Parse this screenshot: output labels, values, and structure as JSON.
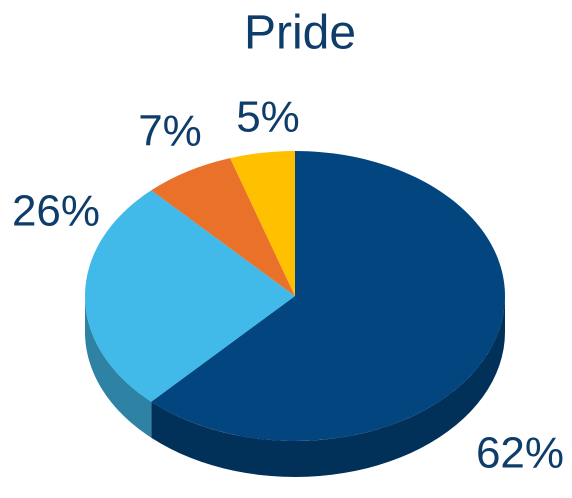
{
  "chart_data": {
    "type": "pie",
    "title": "Pride",
    "categories": [
      null,
      null,
      null,
      null
    ],
    "values": [
      62,
      26,
      7,
      5
    ],
    "value_labels": [
      "62%",
      "26%",
      "7%",
      "5%"
    ],
    "colors": [
      "#02457f",
      "#41b9e9",
      "#e9712a",
      "#ffc000"
    ],
    "start_angle": 0,
    "direction": "clockwise",
    "three_d": true
  }
}
